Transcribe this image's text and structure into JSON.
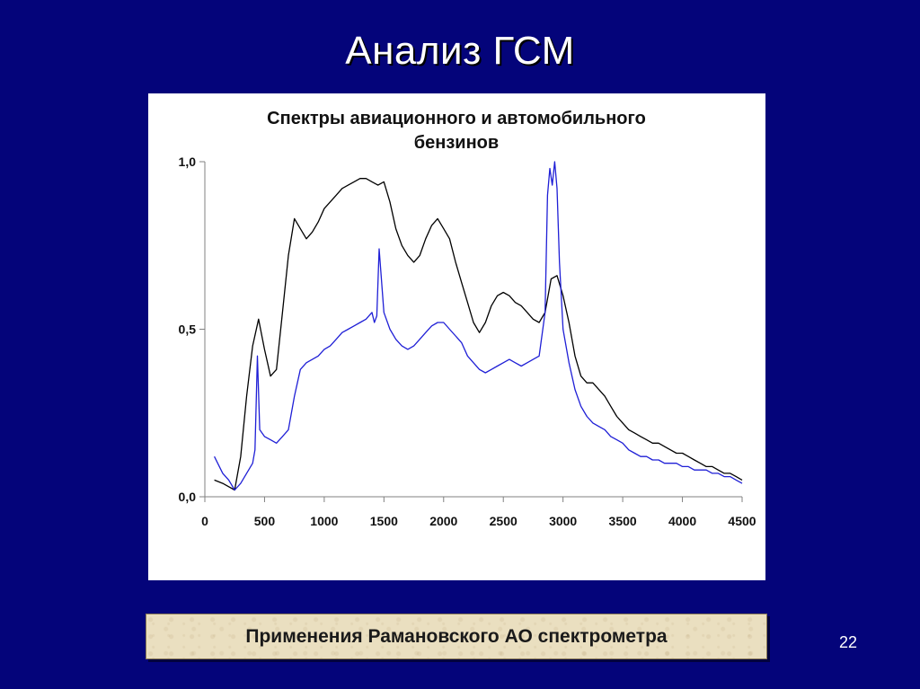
{
  "slide": {
    "title": "Анализ ГСМ",
    "caption": "Применения Рамановского  АО спектрометра",
    "page_number": "22",
    "colors": {
      "background": "#04047a",
      "chart_panel": "#ffffff",
      "caption_box": "#eadfc0"
    }
  },
  "chart_data": {
    "type": "line",
    "title": "Спектры авиационного и автомобильного бензинов",
    "title_lines": [
      "Спектры авиационного и автомобильного",
      "бензинов"
    ],
    "xlabel": "",
    "ylabel": "",
    "xlim": [
      0,
      4500
    ],
    "ylim": [
      0,
      1
    ],
    "x_ticks": [
      0,
      500,
      1000,
      1500,
      2000,
      2500,
      3000,
      3500,
      4000,
      4500
    ],
    "x_tick_labels": [
      "0",
      "500",
      "1000",
      "1500",
      "2000",
      "2500",
      "3000",
      "3500",
      "4000",
      "4500"
    ],
    "y_ticks": [
      0,
      0.5,
      1
    ],
    "y_tick_labels": [
      "0,0",
      "0,5",
      "1,0"
    ],
    "grid": false,
    "legend": false,
    "series": [
      {
        "color": "#000000",
        "x": [
          80,
          150,
          200,
          250,
          300,
          350,
          400,
          450,
          500,
          550,
          600,
          650,
          700,
          750,
          800,
          850,
          900,
          950,
          1000,
          1050,
          1100,
          1150,
          1200,
          1250,
          1300,
          1350,
          1400,
          1450,
          1500,
          1550,
          1600,
          1650,
          1700,
          1750,
          1800,
          1850,
          1900,
          1950,
          2000,
          2050,
          2100,
          2150,
          2200,
          2250,
          2300,
          2350,
          2400,
          2450,
          2500,
          2550,
          2600,
          2650,
          2700,
          2750,
          2800,
          2850,
          2900,
          2950,
          3000,
          3050,
          3100,
          3150,
          3200,
          3250,
          3300,
          3350,
          3400,
          3450,
          3500,
          3550,
          3600,
          3650,
          3700,
          3750,
          3800,
          3850,
          3900,
          3950,
          4000,
          4050,
          4100,
          4150,
          4200,
          4250,
          4300,
          4350,
          4400,
          4450,
          4500
        ],
        "values": [
          0.05,
          0.04,
          0.03,
          0.02,
          0.12,
          0.3,
          0.45,
          0.53,
          0.44,
          0.36,
          0.38,
          0.55,
          0.72,
          0.83,
          0.8,
          0.77,
          0.79,
          0.82,
          0.86,
          0.88,
          0.9,
          0.92,
          0.93,
          0.94,
          0.95,
          0.95,
          0.94,
          0.93,
          0.94,
          0.88,
          0.8,
          0.75,
          0.72,
          0.7,
          0.72,
          0.77,
          0.81,
          0.83,
          0.8,
          0.77,
          0.7,
          0.64,
          0.58,
          0.52,
          0.49,
          0.52,
          0.57,
          0.6,
          0.61,
          0.6,
          0.58,
          0.57,
          0.55,
          0.53,
          0.52,
          0.55,
          0.65,
          0.66,
          0.6,
          0.52,
          0.42,
          0.36,
          0.34,
          0.34,
          0.32,
          0.3,
          0.27,
          0.24,
          0.22,
          0.2,
          0.19,
          0.18,
          0.17,
          0.16,
          0.16,
          0.15,
          0.14,
          0.13,
          0.13,
          0.12,
          0.11,
          0.1,
          0.09,
          0.09,
          0.08,
          0.07,
          0.07,
          0.06,
          0.05
        ]
      },
      {
        "color": "#1f1fd6",
        "x": [
          80,
          150,
          200,
          250,
          300,
          350,
          400,
          420,
          440,
          460,
          500,
          550,
          600,
          650,
          700,
          750,
          800,
          850,
          900,
          950,
          1000,
          1050,
          1100,
          1150,
          1200,
          1250,
          1300,
          1350,
          1400,
          1420,
          1440,
          1460,
          1500,
          1550,
          1600,
          1650,
          1700,
          1750,
          1800,
          1850,
          1900,
          1950,
          2000,
          2050,
          2100,
          2150,
          2200,
          2250,
          2300,
          2350,
          2400,
          2450,
          2500,
          2550,
          2600,
          2650,
          2700,
          2750,
          2800,
          2850,
          2870,
          2890,
          2910,
          2930,
          2950,
          2970,
          3000,
          3050,
          3100,
          3150,
          3200,
          3250,
          3300,
          3350,
          3400,
          3450,
          3500,
          3550,
          3600,
          3650,
          3700,
          3750,
          3800,
          3850,
          3900,
          3950,
          4000,
          4050,
          4100,
          4150,
          4200,
          4250,
          4300,
          4350,
          4400,
          4450,
          4500
        ],
        "values": [
          0.12,
          0.07,
          0.05,
          0.02,
          0.04,
          0.07,
          0.1,
          0.14,
          0.42,
          0.2,
          0.18,
          0.17,
          0.16,
          0.18,
          0.2,
          0.3,
          0.38,
          0.4,
          0.41,
          0.42,
          0.44,
          0.45,
          0.47,
          0.49,
          0.5,
          0.51,
          0.52,
          0.53,
          0.55,
          0.52,
          0.54,
          0.74,
          0.55,
          0.5,
          0.47,
          0.45,
          0.44,
          0.45,
          0.47,
          0.49,
          0.51,
          0.52,
          0.52,
          0.5,
          0.48,
          0.46,
          0.42,
          0.4,
          0.38,
          0.37,
          0.38,
          0.39,
          0.4,
          0.41,
          0.4,
          0.39,
          0.4,
          0.41,
          0.42,
          0.55,
          0.9,
          0.98,
          0.93,
          1.0,
          0.92,
          0.7,
          0.5,
          0.4,
          0.32,
          0.27,
          0.24,
          0.22,
          0.21,
          0.2,
          0.18,
          0.17,
          0.16,
          0.14,
          0.13,
          0.12,
          0.12,
          0.11,
          0.11,
          0.1,
          0.1,
          0.1,
          0.09,
          0.09,
          0.08,
          0.08,
          0.08,
          0.07,
          0.07,
          0.06,
          0.06,
          0.05,
          0.04
        ]
      }
    ]
  }
}
